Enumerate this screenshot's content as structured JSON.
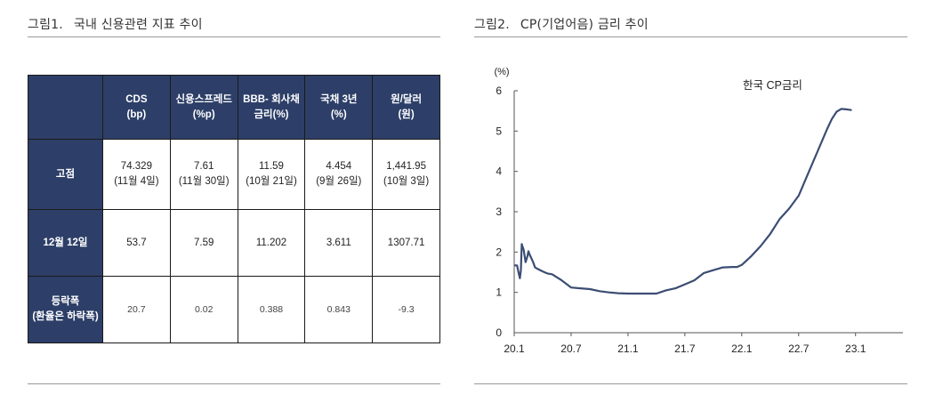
{
  "fig1": {
    "title_num": "그림1.",
    "title_text": "국내 신용관련 지표 추이",
    "table": {
      "columns": [
        {
          "l1": "CDS",
          "l2": "(bp)"
        },
        {
          "l1": "신용스프레드",
          "l2": "(%p)"
        },
        {
          "l1": "BBB- 회사채",
          "l2": "금리(%)"
        },
        {
          "l1": "국채 3년",
          "l2": "(%)"
        },
        {
          "l1": "원/달러",
          "l2": "(원)"
        }
      ],
      "rows": [
        {
          "label": "고점",
          "label2": "",
          "cells": [
            {
              "v": "74.329",
              "s": "(11월 4일)"
            },
            {
              "v": "7.61",
              "s": "(11월 30일)"
            },
            {
              "v": "11.59",
              "s": "(10월 21일)"
            },
            {
              "v": "4.454",
              "s": "(9월 26일)"
            },
            {
              "v": "1,441.95",
              "s": "(10월 3일)"
            }
          ]
        },
        {
          "label": "12월 12일",
          "label2": "",
          "cells": [
            {
              "v": "53.7",
              "s": ""
            },
            {
              "v": "7.59",
              "s": ""
            },
            {
              "v": "11.202",
              "s": ""
            },
            {
              "v": "3.611",
              "s": ""
            },
            {
              "v": "1307.71",
              "s": ""
            }
          ]
        },
        {
          "label": "등락폭",
          "label2": "(환율은 하락폭)",
          "cells": [
            {
              "v": "20.7",
              "s": ""
            },
            {
              "v": "0.02",
              "s": ""
            },
            {
              "v": "0.388",
              "s": ""
            },
            {
              "v": "0.843",
              "s": ""
            },
            {
              "v": "-9.3",
              "s": ""
            }
          ]
        }
      ]
    }
  },
  "fig2": {
    "title_num": "그림2.",
    "title_text": "CP(기업어음) 금리 추이"
  },
  "chart_data": {
    "type": "line",
    "title": "",
    "ylabel_unit": "(%)",
    "xlabel": "",
    "x_ticks": [
      "20.1",
      "20.7",
      "21.1",
      "21.7",
      "22.1",
      "22.7",
      "23.1"
    ],
    "ylim": [
      0,
      6
    ],
    "y_ticks": [
      0,
      1,
      2,
      3,
      4,
      5,
      6
    ],
    "grid": false,
    "color": "#3b4d73",
    "series": [
      {
        "name": "한국 CP금리",
        "x": [
          0,
          0.3,
          0.5,
          0.6,
          0.7,
          0.8,
          0.9,
          1.0,
          1.2,
          1.4,
          1.5,
          1.6,
          1.8,
          2.0,
          2.2,
          2.5,
          3.0,
          3.5,
          4.0,
          5.0,
          6.0,
          7.0,
          8.0,
          9.0,
          10.0,
          11.0,
          12.0,
          13.0,
          14.0,
          15.0,
          16.0,
          17.0,
          18.0,
          19.0,
          20.0,
          21.0,
          22.0,
          23.0,
          23.5,
          24.0,
          25.0,
          26.0,
          27.0,
          28.0,
          29.0,
          30.0,
          31.0,
          32.0,
          33.0,
          33.5,
          34.0,
          34.5,
          35.0,
          35.3,
          35.6
        ],
        "y": [
          1.67,
          1.67,
          1.45,
          1.35,
          1.55,
          2.2,
          2.12,
          2.05,
          1.75,
          1.9,
          2.02,
          1.95,
          1.85,
          1.75,
          1.62,
          1.58,
          1.52,
          1.47,
          1.45,
          1.3,
          1.12,
          1.1,
          1.08,
          1.03,
          1.0,
          0.98,
          0.97,
          0.97,
          0.97,
          0.97,
          1.05,
          1.1,
          1.2,
          1.3,
          1.48,
          1.55,
          1.62,
          1.63,
          1.63,
          1.68,
          1.9,
          2.15,
          2.45,
          2.82,
          3.08,
          3.4,
          3.95,
          4.5,
          5.05,
          5.3,
          5.48,
          5.55,
          5.54,
          5.53,
          5.52
        ]
      }
    ],
    "x_tick_positions": [
      0,
      6,
      12,
      18,
      24,
      30,
      36
    ],
    "x_range": [
      0,
      41
    ]
  }
}
